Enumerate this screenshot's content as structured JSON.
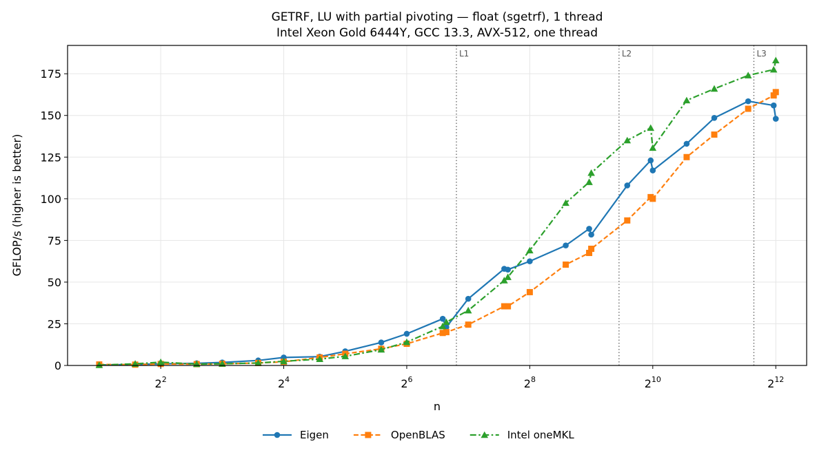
{
  "chart_data": {
    "type": "line",
    "title": "GETRF, LU with partial pivoting — float (sgetrf), 1 thread",
    "subtitle": "Intel Xeon Gold 6444Y, GCC 13.3, AVX-512, one thread",
    "xlabel": "n",
    "ylabel": "GFLOP/s (higher is better)",
    "x_scale": "log2",
    "xlim": [
      1.4,
      5800
    ],
    "ylim": [
      0,
      192
    ],
    "x_ticks": [
      4,
      16,
      64,
      256,
      1024,
      4096
    ],
    "x_tick_labels": [
      {
        "base": "2",
        "exp": "2"
      },
      {
        "base": "2",
        "exp": "4"
      },
      {
        "base": "2",
        "exp": "6"
      },
      {
        "base": "2",
        "exp": "8"
      },
      {
        "base": "2",
        "exp": "10"
      },
      {
        "base": "2",
        "exp": "12"
      }
    ],
    "y_ticks": [
      0,
      25,
      50,
      75,
      100,
      125,
      150,
      175
    ],
    "y_tick_labels": [
      "0",
      "25",
      "50",
      "75",
      "100",
      "125",
      "150",
      "175"
    ],
    "grid": true,
    "legend": "bottom-center",
    "cache_lines": [
      {
        "label": "L1",
        "x": 112
      },
      {
        "label": "L2",
        "x": 700
      },
      {
        "label": "L3",
        "x": 3200
      }
    ],
    "series": [
      {
        "name": "Eigen",
        "color": "#1f77b4",
        "marker": "circle",
        "dash": "solid",
        "x": [
          2,
          3,
          4,
          6,
          8,
          12,
          16,
          24,
          32,
          48,
          64,
          96,
          100,
          128,
          192,
          200,
          256,
          384,
          500,
          512,
          768,
          1000,
          1024,
          1500,
          2048,
          3000,
          4000,
          4096
        ],
        "y": [
          0.3,
          0.6,
          1.0,
          1.3,
          1.8,
          3.0,
          4.8,
          5.3,
          8.5,
          13.8,
          19.0,
          28.0,
          23.0,
          40.0,
          58.0,
          57.5,
          62.5,
          72.0,
          82.0,
          78.5,
          108.0,
          123.0,
          117.0,
          133.0,
          148.5,
          158.5,
          156.0,
          148.0
        ]
      },
      {
        "name": "OpenBLAS",
        "color": "#ff7f0e",
        "marker": "square",
        "dash": "dashed",
        "x": [
          2,
          3,
          4,
          6,
          8,
          12,
          16,
          24,
          32,
          48,
          64,
          96,
          100,
          128,
          192,
          200,
          256,
          384,
          500,
          512,
          768,
          1000,
          1024,
          1500,
          2048,
          3000,
          4000,
          4096
        ],
        "y": [
          0.6,
          0.5,
          0.9,
          0.8,
          1.0,
          1.5,
          2.2,
          4.8,
          7.0,
          10.0,
          13.0,
          19.5,
          20.0,
          24.5,
          35.5,
          35.5,
          44.0,
          60.5,
          67.5,
          70.0,
          87.0,
          101.0,
          100.0,
          125.0,
          138.5,
          154.0,
          162.0,
          164.0
        ]
      },
      {
        "name": "Intel oneMKL",
        "color": "#2ca02c",
        "marker": "triangle",
        "dash": "dashdot",
        "x": [
          2,
          3,
          4,
          6,
          8,
          12,
          16,
          24,
          32,
          48,
          64,
          96,
          100,
          128,
          192,
          200,
          256,
          384,
          500,
          512,
          768,
          1000,
          1024,
          1500,
          2048,
          3000,
          4000,
          4096
        ],
        "y": [
          0.2,
          1.0,
          2.0,
          0.8,
          1.0,
          1.5,
          2.5,
          3.8,
          5.5,
          9.5,
          14.0,
          23.5,
          26.0,
          33.0,
          51.0,
          53.0,
          69.0,
          97.5,
          110.0,
          115.5,
          135.0,
          142.5,
          130.5,
          159.0,
          166.0,
          174.0,
          177.5,
          183.0
        ]
      }
    ]
  }
}
